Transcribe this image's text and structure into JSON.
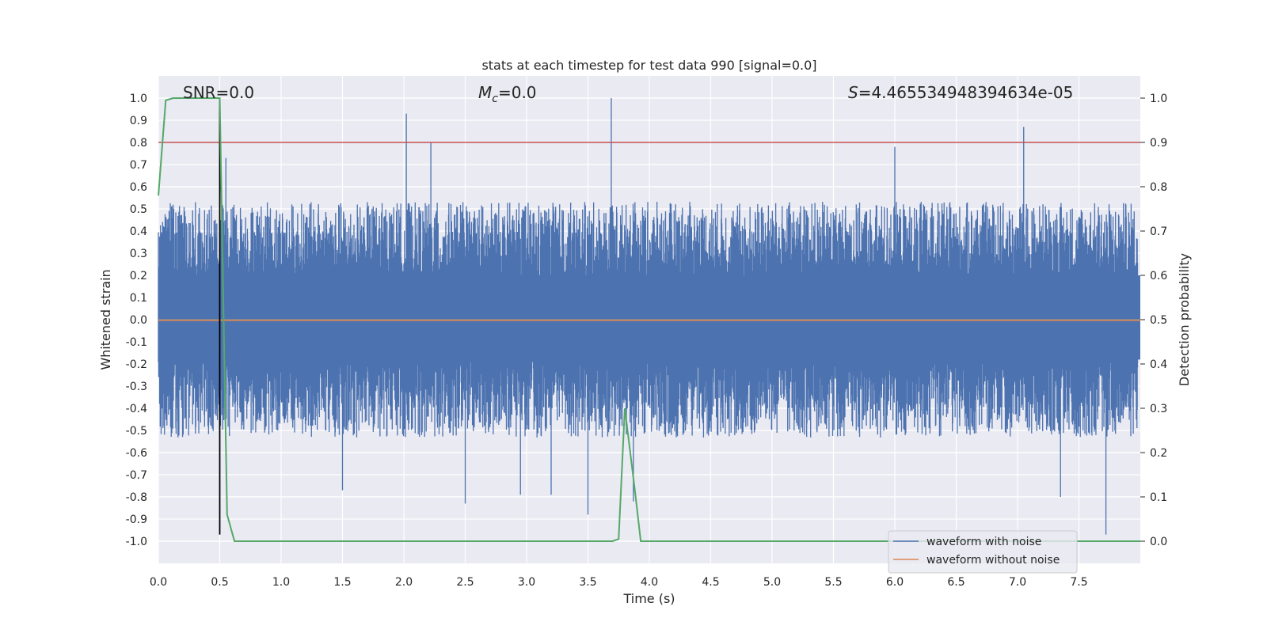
{
  "chart_data": {
    "type": "line",
    "title": "stats at each timestep for test data 990 [signal=0.0]",
    "xlabel": "Time (s)",
    "ylabel": "Whitened strain",
    "y2label": "Detection probability",
    "xlim": [
      0.0,
      8.0
    ],
    "ylim": [
      -1.1,
      1.1
    ],
    "y2lim": [
      -0.05,
      1.05
    ],
    "x_ticks": [
      0.0,
      0.5,
      1.0,
      1.5,
      2.0,
      2.5,
      3.0,
      3.5,
      4.0,
      4.5,
      5.0,
      5.5,
      6.0,
      6.5,
      7.0,
      7.5
    ],
    "x_tick_labels": [
      "0.0",
      "0.5",
      "1.0",
      "1.5",
      "2.0",
      "2.5",
      "3.0",
      "3.5",
      "4.0",
      "4.5",
      "5.0",
      "5.5",
      "6.0",
      "6.5",
      "7.0",
      "7.5"
    ],
    "y_ticks": [
      1.0,
      0.9,
      0.8,
      0.7,
      0.6,
      0.5,
      0.4,
      0.3,
      0.2,
      0.1,
      0.0,
      -0.1,
      -0.2,
      -0.3,
      -0.4,
      -0.5,
      -0.6,
      -0.7,
      -0.8,
      -0.9,
      -1.0
    ],
    "y_tick_labels": [
      "1.0",
      "0.9",
      "0.8",
      "0.7",
      "0.6",
      "0.5",
      "0.4",
      "0.3",
      "0.2",
      "0.1",
      "0.0",
      "-0.1",
      "-0.2",
      "-0.3",
      "-0.4",
      "-0.5",
      "-0.6",
      "-0.7",
      "-0.8",
      "-0.9",
      "-1.0"
    ],
    "y2_ticks": [
      1.0,
      0.9,
      0.8,
      0.7,
      0.6,
      0.5,
      0.4,
      0.3,
      0.2,
      0.1,
      0.0
    ],
    "y2_tick_labels": [
      "1.0",
      "0.9",
      "0.8",
      "0.7",
      "0.6",
      "0.5",
      "0.4",
      "0.3",
      "0.2",
      "0.1",
      "0.0"
    ],
    "grid": true,
    "legend_position": "lower-right",
    "annotations": [
      {
        "text": "SNR=0.0",
        "x": 0.2,
        "y": 1.03
      },
      {
        "text_prefix": "M",
        "text_sub": "c",
        "text_suffix": "=0.0",
        "x": 2.6,
        "y": 1.03
      },
      {
        "text_prefix": "S",
        "text_suffix": "=4.465534948394634e-05",
        "x": 5.6,
        "y": 1.03
      }
    ],
    "series": [
      {
        "name": "waveform with noise",
        "color": "#4c72b0",
        "kind": "noise",
        "band": [
          -0.38,
          0.38
        ],
        "spikes": [
          {
            "x": 2.02,
            "y": 0.93
          },
          {
            "x": 2.22,
            "y": 0.8
          },
          {
            "x": 3.69,
            "y": 1.0
          },
          {
            "x": 7.05,
            "y": 0.87
          },
          {
            "x": 6.0,
            "y": 0.78
          },
          {
            "x": 0.55,
            "y": 0.73
          },
          {
            "x": 3.5,
            "y": -0.88
          },
          {
            "x": 3.2,
            "y": -0.79
          },
          {
            "x": 2.5,
            "y": -0.83
          },
          {
            "x": 7.72,
            "y": -0.97
          },
          {
            "x": 7.35,
            "y": -0.8
          },
          {
            "x": 1.5,
            "y": -0.77
          },
          {
            "x": 3.87,
            "y": -0.82
          },
          {
            "x": 2.95,
            "y": -0.79
          }
        ]
      },
      {
        "name": "waveform without noise",
        "color": "#dd8452",
        "x": [
          0.0,
          8.0
        ],
        "y": [
          0.0,
          0.0
        ]
      },
      {
        "axis": "y2",
        "color": "#55a868",
        "x": [
          0.0,
          0.06,
          0.12,
          0.2,
          0.3,
          0.4,
          0.5,
          0.56,
          0.62,
          1.0,
          2.0,
          3.0,
          3.5,
          3.7,
          3.75,
          3.8,
          3.88,
          3.93,
          4.5,
          5.0,
          6.0,
          7.0,
          7.5,
          8.0
        ],
        "y": [
          0.78,
          0.995,
          1.0,
          1.0,
          1.0,
          1.0,
          1.0,
          0.06,
          0.0,
          0.0,
          0.0,
          0.0,
          0.0,
          0.0,
          0.005,
          0.3,
          0.12,
          0.0,
          0.0,
          0.0,
          0.0,
          0.0,
          0.0,
          0.0
        ]
      }
    ],
    "hlines": [
      {
        "axis": "y2",
        "y": 0.9,
        "color": "#c44e52"
      },
      {
        "axis": "y",
        "y": 0.0,
        "color": "#8c8c8c"
      }
    ],
    "vlines": [
      {
        "axis": "y",
        "x": 0.5,
        "y0": -0.97,
        "y1": 1.0,
        "color": "#000000"
      }
    ]
  }
}
